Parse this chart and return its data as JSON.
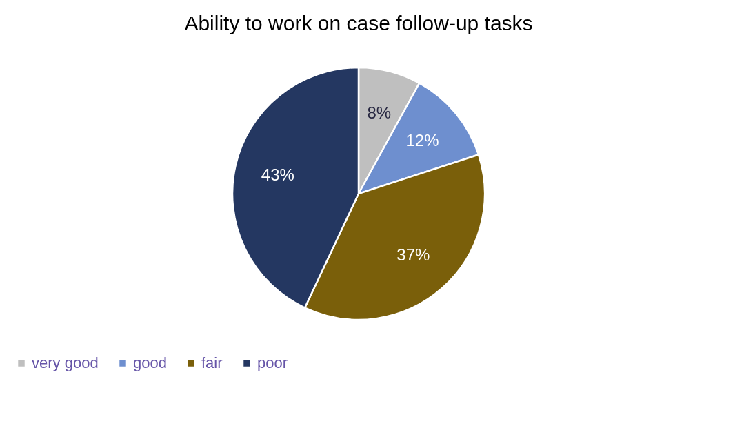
{
  "chart_data": {
    "type": "pie",
    "title": "Ability to work on case follow-up tasks",
    "categories": [
      "very good",
      "good",
      "fair",
      "poor"
    ],
    "values": [
      8,
      12,
      37,
      43
    ],
    "colors": [
      "#bfbfbf",
      "#6e8fcf",
      "#7a5f0a",
      "#243761"
    ],
    "value_labels": [
      "8%",
      "12%",
      "37%",
      "43%"
    ],
    "legend": "bottom"
  }
}
